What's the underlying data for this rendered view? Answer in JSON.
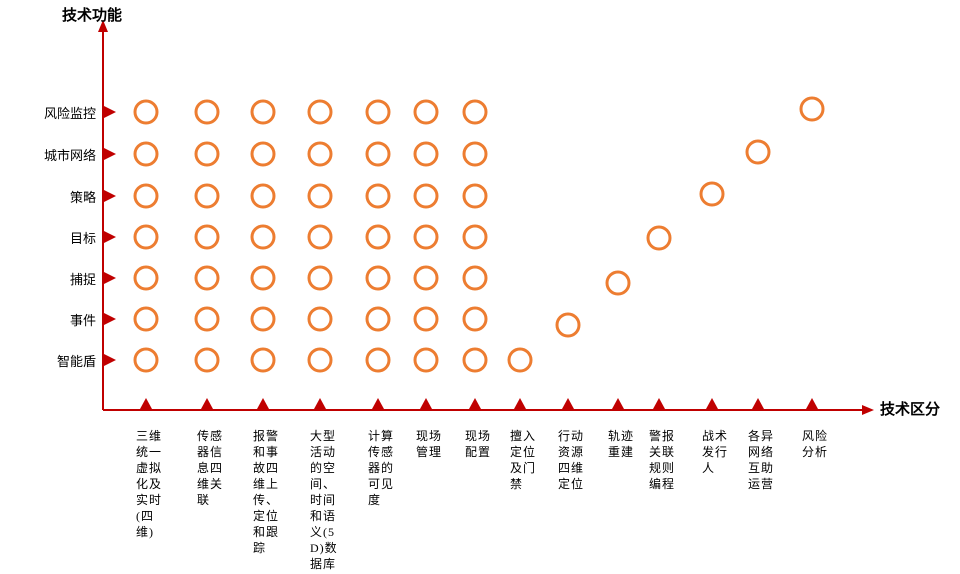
{
  "y_axis_title": "技术功能",
  "x_axis_title": "技术区分",
  "rows": [
    "风险监控",
    "城市网络",
    "策略",
    "目标",
    "捕捉",
    "事件",
    "智能盾"
  ],
  "columns": [
    "三维统一虚拟化及实时(四维)",
    "传感器信息四维关联",
    "报警和事故四维上传、定位和跟踪",
    "大型活动的空间、时间和语义(5D)数据库",
    "计算传感器的可见度",
    "现场管理",
    "现场配置",
    "擅入定位及门禁",
    "行动资源四维定位",
    "轨迹重建",
    "警报关联规则编程",
    "战术发行人",
    "各异网络互助运营",
    "风险分析"
  ]
}
